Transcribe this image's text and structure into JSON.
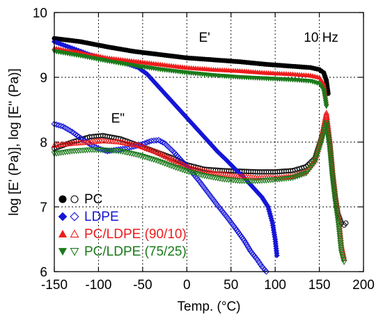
{
  "chart_data": {
    "type": "scatter",
    "title": "",
    "xlabel": "Temp. (°C)",
    "ylabel": "log [E' (Pa)], log [E'' (Pa)]",
    "xlim": [
      -150,
      200
    ],
    "ylim": [
      6,
      10
    ],
    "xticks": [
      -150,
      -100,
      -50,
      0,
      50,
      100,
      150,
      200
    ],
    "yticks": [
      6,
      7,
      8,
      9,
      10
    ],
    "xtick_labels": [
      "-150",
      "-100",
      "-50",
      "0",
      "50",
      "100",
      "150",
      "200"
    ],
    "ytick_labels": [
      "6",
      "7",
      "8",
      "9",
      "10"
    ],
    "grid": "dotted",
    "legend_position": "bottom-left",
    "annotations": [
      {
        "text": "E'",
        "x": 20,
        "y": 9.55
      },
      {
        "text": "E\"",
        "x": -78,
        "y": 8.3
      },
      {
        "text": "10 Hz",
        "x": 152,
        "y": 9.55
      }
    ],
    "series": [
      {
        "name": "PC",
        "color": "#000000",
        "marker": "circle",
        "storage": [
          [
            -150,
            9.6
          ],
          [
            -120,
            9.55
          ],
          [
            -90,
            9.47
          ],
          [
            -60,
            9.4
          ],
          [
            -30,
            9.35
          ],
          [
            0,
            9.3
          ],
          [
            30,
            9.27
          ],
          [
            60,
            9.24
          ],
          [
            90,
            9.2
          ],
          [
            120,
            9.17
          ],
          [
            140,
            9.15
          ],
          [
            150,
            9.12
          ],
          [
            155,
            9.07
          ],
          [
            158,
            8.95
          ],
          [
            160,
            8.75
          ]
        ],
        "loss": [
          [
            -150,
            7.9
          ],
          [
            -130,
            8.0
          ],
          [
            -110,
            8.08
          ],
          [
            -95,
            8.1
          ],
          [
            -75,
            8.05
          ],
          [
            -55,
            7.95
          ],
          [
            -35,
            7.85
          ],
          [
            -15,
            7.75
          ],
          [
            0,
            7.65
          ],
          [
            20,
            7.58
          ],
          [
            40,
            7.56
          ],
          [
            60,
            7.55
          ],
          [
            80,
            7.54
          ],
          [
            100,
            7.54
          ],
          [
            120,
            7.56
          ],
          [
            135,
            7.62
          ],
          [
            145,
            7.75
          ],
          [
            152,
            8.05
          ],
          [
            158,
            8.35
          ],
          [
            162,
            7.95
          ],
          [
            165,
            7.5
          ],
          [
            168,
            7.15
          ],
          [
            171,
            6.9
          ],
          [
            175,
            6.75
          ],
          [
            178,
            6.72
          ],
          [
            180,
            6.75
          ]
        ]
      },
      {
        "name": "LDPE",
        "color": "#1515d8",
        "marker": "diamond",
        "storage": [
          [
            -150,
            9.55
          ],
          [
            -130,
            9.45
          ],
          [
            -110,
            9.35
          ],
          [
            -90,
            9.28
          ],
          [
            -70,
            9.22
          ],
          [
            -55,
            9.15
          ],
          [
            -45,
            9.05
          ],
          [
            -35,
            8.9
          ],
          [
            -25,
            8.75
          ],
          [
            -15,
            8.6
          ],
          [
            -5,
            8.45
          ],
          [
            5,
            8.3
          ],
          [
            15,
            8.15
          ],
          [
            25,
            8.0
          ],
          [
            35,
            7.85
          ],
          [
            45,
            7.72
          ],
          [
            55,
            7.58
          ],
          [
            65,
            7.45
          ],
          [
            75,
            7.3
          ],
          [
            85,
            7.15
          ],
          [
            92,
            7.0
          ],
          [
            97,
            6.75
          ],
          [
            100,
            6.5
          ],
          [
            102,
            6.25
          ]
        ],
        "loss": [
          [
            -150,
            8.28
          ],
          [
            -140,
            8.24
          ],
          [
            -130,
            8.16
          ],
          [
            -120,
            8.06
          ],
          [
            -110,
            7.97
          ],
          [
            -100,
            7.9
          ],
          [
            -90,
            7.86
          ],
          [
            -80,
            7.88
          ],
          [
            -70,
            7.9
          ],
          [
            -60,
            7.93
          ],
          [
            -50,
            7.97
          ],
          [
            -40,
            8.02
          ],
          [
            -32,
            8.03
          ],
          [
            -25,
            7.98
          ],
          [
            -15,
            7.85
          ],
          [
            -5,
            7.7
          ],
          [
            5,
            7.55
          ],
          [
            15,
            7.38
          ],
          [
            25,
            7.2
          ],
          [
            35,
            7.02
          ],
          [
            45,
            6.85
          ],
          [
            55,
            6.67
          ],
          [
            65,
            6.48
          ],
          [
            72,
            6.32
          ],
          [
            80,
            6.18
          ],
          [
            85,
            6.08
          ],
          [
            90,
            6.0
          ]
        ]
      },
      {
        "name": "PC/LDPE (90/10)",
        "color": "#ee1c1c",
        "marker": "triangle-up",
        "storage": [
          [
            -150,
            9.45
          ],
          [
            -120,
            9.38
          ],
          [
            -90,
            9.3
          ],
          [
            -60,
            9.25
          ],
          [
            -30,
            9.2
          ],
          [
            0,
            9.15
          ],
          [
            30,
            9.12
          ],
          [
            60,
            9.1
          ],
          [
            90,
            9.07
          ],
          [
            120,
            9.05
          ],
          [
            140,
            9.03
          ],
          [
            150,
            9.0
          ],
          [
            155,
            8.9
          ],
          [
            158,
            8.6
          ]
        ],
        "loss": [
          [
            -150,
            7.95
          ],
          [
            -130,
            7.98
          ],
          [
            -110,
            8.0
          ],
          [
            -95,
            8.02
          ],
          [
            -75,
            8.0
          ],
          [
            -55,
            7.95
          ],
          [
            -35,
            7.85
          ],
          [
            -15,
            7.72
          ],
          [
            0,
            7.62
          ],
          [
            20,
            7.55
          ],
          [
            40,
            7.5
          ],
          [
            60,
            7.47
          ],
          [
            80,
            7.45
          ],
          [
            100,
            7.45
          ],
          [
            120,
            7.47
          ],
          [
            135,
            7.55
          ],
          [
            145,
            7.72
          ],
          [
            152,
            8.05
          ],
          [
            158,
            8.45
          ],
          [
            162,
            8.0
          ],
          [
            165,
            7.55
          ],
          [
            168,
            7.2
          ],
          [
            172,
            6.8
          ],
          [
            175,
            6.4
          ],
          [
            178,
            6.2
          ]
        ]
      },
      {
        "name": "PC/LDPE (75/25)",
        "color": "#1a7a1a",
        "marker": "triangle-down",
        "storage": [
          [
            -150,
            9.4
          ],
          [
            -120,
            9.33
          ],
          [
            -90,
            9.25
          ],
          [
            -60,
            9.18
          ],
          [
            -30,
            9.12
          ],
          [
            0,
            9.07
          ],
          [
            30,
            9.03
          ],
          [
            60,
            9.0
          ],
          [
            90,
            8.98
          ],
          [
            120,
            8.96
          ],
          [
            140,
            8.94
          ],
          [
            150,
            8.9
          ],
          [
            155,
            8.8
          ],
          [
            158,
            8.55
          ]
        ],
        "loss": [
          [
            -150,
            7.82
          ],
          [
            -130,
            7.86
          ],
          [
            -110,
            7.88
          ],
          [
            -95,
            7.88
          ],
          [
            -75,
            7.86
          ],
          [
            -55,
            7.8
          ],
          [
            -35,
            7.72
          ],
          [
            -15,
            7.62
          ],
          [
            0,
            7.55
          ],
          [
            20,
            7.48
          ],
          [
            40,
            7.43
          ],
          [
            60,
            7.4
          ],
          [
            80,
            7.4
          ],
          [
            100,
            7.42
          ],
          [
            120,
            7.45
          ],
          [
            135,
            7.52
          ],
          [
            145,
            7.7
          ],
          [
            152,
            8.0
          ],
          [
            158,
            8.3
          ],
          [
            162,
            7.9
          ],
          [
            165,
            7.45
          ],
          [
            168,
            7.1
          ],
          [
            172,
            6.7
          ],
          [
            175,
            6.3
          ],
          [
            178,
            6.15
          ]
        ]
      }
    ]
  }
}
